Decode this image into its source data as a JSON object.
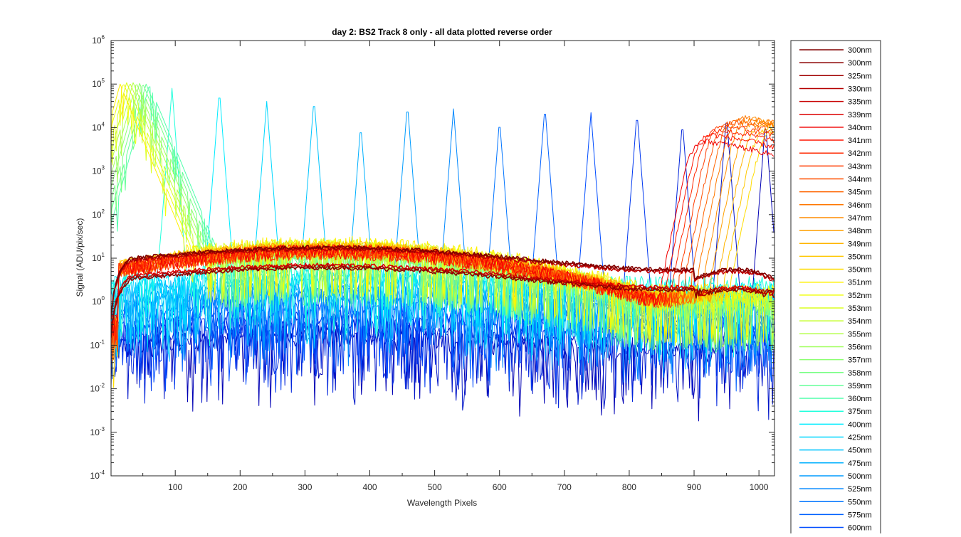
{
  "chart_data": {
    "type": "line",
    "title": "day 2: BS2   Track 8 only - all data plotted reverse order",
    "xlabel": "Wavelength Pixels",
    "ylabel": "Signal (ADU/pix/sec)",
    "xlim": [
      1,
      1024
    ],
    "ylim": [
      0.0001,
      1000000
    ],
    "yscale": "log",
    "x_ticks": [
      100,
      200,
      300,
      400,
      500,
      600,
      700,
      800,
      900,
      1000
    ],
    "y_ticks": [
      {
        "base": "10",
        "exp": "-4",
        "value": 0.0001
      },
      {
        "base": "10",
        "exp": "-3",
        "value": 0.001
      },
      {
        "base": "10",
        "exp": "-2",
        "value": 0.01
      },
      {
        "base": "10",
        "exp": "-1",
        "value": 0.1
      },
      {
        "base": "10",
        "exp": "0",
        "value": 1
      },
      {
        "base": "10",
        "exp": "1",
        "value": 10
      },
      {
        "base": "10",
        "exp": "2",
        "value": 100
      },
      {
        "base": "10",
        "exp": "3",
        "value": 1000
      },
      {
        "base": "10",
        "exp": "4",
        "value": 10000
      },
      {
        "base": "10",
        "exp": "5",
        "value": 100000
      },
      {
        "base": "10",
        "exp": "6",
        "value": 1000000
      }
    ],
    "grid": false,
    "legend_position": "outside-right",
    "colormap": "jet",
    "series": [
      {
        "name": "300nm",
        "color": "#800000",
        "kind": "uv",
        "level": 18
      },
      {
        "name": "300nm",
        "color": "#8c0000",
        "kind": "uv",
        "level": 6
      },
      {
        "name": "325nm",
        "color": "#a00000",
        "kind": "uv",
        "level": 17
      },
      {
        "name": "330nm",
        "color": "#b40000",
        "kind": "uv",
        "level": 6.5
      },
      {
        "name": "335nm",
        "color": "#c80000",
        "kind": "uv",
        "level": 16
      },
      {
        "name": "339nm",
        "color": "#dc0000",
        "kind": "uv",
        "level": 7
      },
      {
        "name": "340nm",
        "color": "#f00000",
        "kind": "edge",
        "peak_x": 905,
        "peak_y": 5000,
        "level": 15
      },
      {
        "name": "341nm",
        "color": "#ff1400",
        "kind": "edge",
        "peak_x": 915,
        "peak_y": 7000,
        "level": 15
      },
      {
        "name": "342nm",
        "color": "#ff2800",
        "kind": "edge",
        "peak_x": 925,
        "peak_y": 9000,
        "level": 15
      },
      {
        "name": "343nm",
        "color": "#ff3c00",
        "kind": "edge",
        "peak_x": 935,
        "peak_y": 11000,
        "level": 15
      },
      {
        "name": "344nm",
        "color": "#ff5000",
        "kind": "edge",
        "peak_x": 945,
        "peak_y": 13000,
        "level": 15
      },
      {
        "name": "345nm",
        "color": "#ff6400",
        "kind": "edge",
        "peak_x": 955,
        "peak_y": 15000,
        "level": 15
      },
      {
        "name": "346nm",
        "color": "#ff7800",
        "kind": "edge",
        "peak_x": 965,
        "peak_y": 17000,
        "level": 16
      },
      {
        "name": "347nm",
        "color": "#ff8c00",
        "kind": "edge",
        "peak_x": 975,
        "peak_y": 16000,
        "level": 16
      },
      {
        "name": "348nm",
        "color": "#ffa000",
        "kind": "edge",
        "peak_x": 985,
        "peak_y": 14000,
        "level": 17
      },
      {
        "name": "349nm",
        "color": "#ffb400",
        "kind": "edge",
        "peak_x": 995,
        "peak_y": 12000,
        "level": 18
      },
      {
        "name": "350nm",
        "color": "#ffc800",
        "kind": "edge",
        "peak_x": 1005,
        "peak_y": 10000,
        "level": 18
      },
      {
        "name": "350nm",
        "color": "#ffdc00",
        "kind": "edge",
        "peak_x": 1015,
        "peak_y": 9000,
        "level": 18
      },
      {
        "name": "351nm",
        "color": "#fff000",
        "kind": "left",
        "peak_x": 15,
        "peak_y": 100000,
        "level": 18
      },
      {
        "name": "352nm",
        "color": "#f0ff0c",
        "kind": "left",
        "peak_x": 20,
        "peak_y": 105000,
        "level": 17
      },
      {
        "name": "353nm",
        "color": "#dcff20",
        "kind": "left",
        "peak_x": 25,
        "peak_y": 108000,
        "level": 16
      },
      {
        "name": "354nm",
        "color": "#c8ff34",
        "kind": "left",
        "peak_x": 30,
        "peak_y": 108000,
        "level": 15
      },
      {
        "name": "355nm",
        "color": "#b4ff48",
        "kind": "left",
        "peak_x": 35,
        "peak_y": 108000,
        "level": 14
      },
      {
        "name": "356nm",
        "color": "#a0ff5c",
        "kind": "left",
        "peak_x": 40,
        "peak_y": 106000,
        "level": 13
      },
      {
        "name": "357nm",
        "color": "#8cff70",
        "kind": "left",
        "peak_x": 45,
        "peak_y": 104000,
        "level": 12
      },
      {
        "name": "358nm",
        "color": "#78ff84",
        "kind": "left",
        "peak_x": 50,
        "peak_y": 102000,
        "level": 11
      },
      {
        "name": "359nm",
        "color": "#64ff98",
        "kind": "left",
        "peak_x": 55,
        "peak_y": 100000,
        "level": 10
      },
      {
        "name": "360nm",
        "color": "#50ffac",
        "kind": "left",
        "peak_x": 60,
        "peak_y": 95000,
        "level": 9
      },
      {
        "name": "375nm",
        "color": "#20ffdc",
        "kind": "peak",
        "peak_x": 95,
        "peak_y": 80000,
        "level": 5
      },
      {
        "name": "400nm",
        "color": "#00ecff",
        "kind": "peak",
        "peak_x": 168,
        "peak_y": 75000,
        "level": 4
      },
      {
        "name": "425nm",
        "color": "#00d8ff",
        "kind": "peak",
        "peak_x": 241,
        "peak_y": 40000,
        "level": 3.5
      },
      {
        "name": "450nm",
        "color": "#00c4ff",
        "kind": "peak",
        "peak_x": 314,
        "peak_y": 48000,
        "level": 3
      },
      {
        "name": "475nm",
        "color": "#00b0ff",
        "kind": "peak",
        "peak_x": 386,
        "peak_y": 12000,
        "level": 2.5
      },
      {
        "name": "500nm",
        "color": "#009cff",
        "kind": "peak",
        "peak_x": 458,
        "peak_y": 36000,
        "level": 2
      },
      {
        "name": "525nm",
        "color": "#0088ff",
        "kind": "peak",
        "peak_x": 529,
        "peak_y": 27000,
        "level": 1.6
      },
      {
        "name": "550nm",
        "color": "#0074ff",
        "kind": "peak",
        "peak_x": 600,
        "peak_y": 16000,
        "level": 1.2
      },
      {
        "name": "575nm",
        "color": "#0060ff",
        "kind": "peak",
        "peak_x": 670,
        "peak_y": 32000,
        "level": 0.9
      },
      {
        "name": "600nm",
        "color": "#004cff",
        "kind": "peak",
        "peak_x": 741,
        "peak_y": 22000,
        "level": 0.6
      }
    ],
    "extra_traces": [
      {
        "color": "#0038f0",
        "peak_x": 812,
        "peak_y": 23000,
        "level": 0.4
      },
      {
        "color": "#0024dc",
        "peak_x": 882,
        "peak_y": 14000,
        "level": 0.3
      },
      {
        "color": "#0014c8",
        "peak_x": 950,
        "peak_y": 20000,
        "level": 0.2
      },
      {
        "color": "#0000b4",
        "peak_x": 1010,
        "peak_y": 14000,
        "level": 0.15
      }
    ]
  }
}
